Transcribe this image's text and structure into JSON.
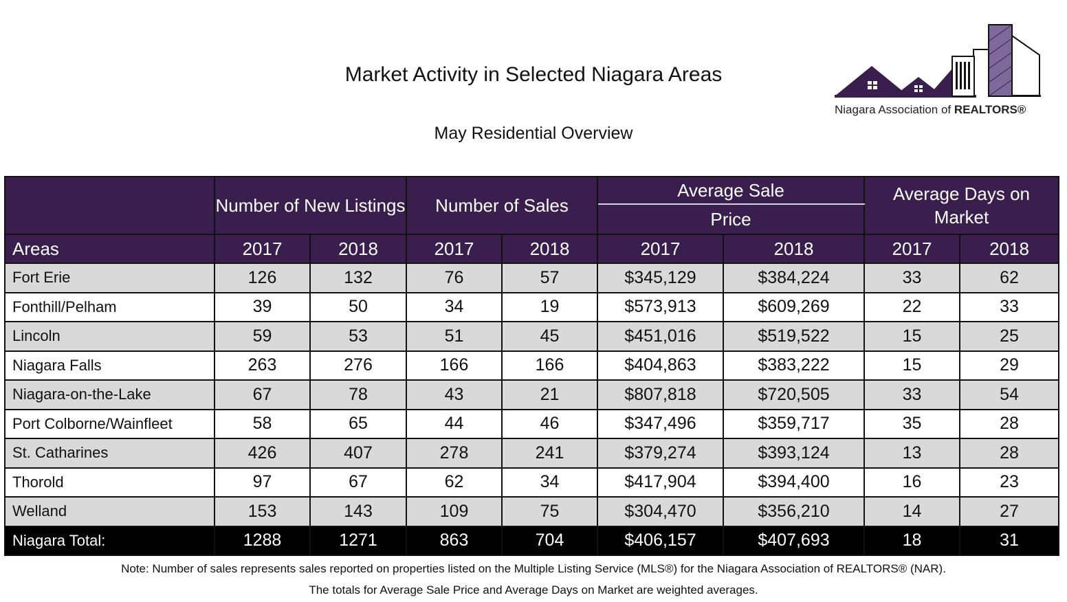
{
  "header": {
    "title": "Market Activity in Selected Niagara Areas",
    "subtitle": "May Residential Overview"
  },
  "logo": {
    "text_regular": "Niagara Association of ",
    "text_bold": "REALTORS®",
    "icon": "house-and-buildings-logo",
    "colors": {
      "purple": "#3a1f4e",
      "light_purple": "#7e6a9a"
    }
  },
  "table": {
    "group_headers": {
      "listings": "Number of New Listings",
      "sales": "Number of Sales",
      "price_line1": "Average Sale",
      "price_line2": "Price",
      "days": "Average Days on Market"
    },
    "areas_label": "Areas",
    "years": [
      "2017",
      "2018",
      "2017",
      "2018",
      "2017",
      "2018",
      "2017",
      "2018"
    ],
    "rows": [
      {
        "area": "Fort Erie",
        "values": [
          "126",
          "132",
          "76",
          "57",
          "$345,129",
          "$384,224",
          "33",
          "62"
        ]
      },
      {
        "area": "Fonthill/Pelham",
        "values": [
          "39",
          "50",
          "34",
          "19",
          "$573,913",
          "$609,269",
          "22",
          "33"
        ]
      },
      {
        "area": "Lincoln",
        "values": [
          "59",
          "53",
          "51",
          "45",
          "$451,016",
          "$519,522",
          "15",
          "25"
        ]
      },
      {
        "area": "Niagara Falls",
        "values": [
          "263",
          "276",
          "166",
          "166",
          "$404,863",
          "$383,222",
          "15",
          "29"
        ]
      },
      {
        "area": "Niagara-on-the-Lake",
        "values": [
          "67",
          "78",
          "43",
          "21",
          "$807,818",
          "$720,505",
          "33",
          "54"
        ]
      },
      {
        "area": "Port Colborne/Wainfleet",
        "values": [
          "58",
          "65",
          "44",
          "46",
          "$347,496",
          "$359,717",
          "35",
          "28"
        ]
      },
      {
        "area": "St. Catharines",
        "values": [
          "426",
          "407",
          "278",
          "241",
          "$379,274",
          "$393,124",
          "13",
          "28"
        ]
      },
      {
        "area": "Thorold",
        "values": [
          "97",
          "67",
          "62",
          "34",
          "$417,904",
          "$394,400",
          "16",
          "23"
        ]
      },
      {
        "area": "Welland",
        "values": [
          "153",
          "143",
          "109",
          "75",
          "$304,470",
          "$356,210",
          "14",
          "27"
        ]
      }
    ],
    "total": {
      "area": "Niagara Total:",
      "values": [
        "1288",
        "1271",
        "863",
        "704",
        "$406,157",
        "$407,693",
        "18",
        "31"
      ]
    }
  },
  "notes": {
    "line1": "Note: Number of sales represents sales reported on properties listed on the Multiple Listing Service (MLS®) for the Niagara Association of REALTORS® (NAR).",
    "line2": "The totals for Average Sale Price and Average Days on Market are weighted averages."
  }
}
